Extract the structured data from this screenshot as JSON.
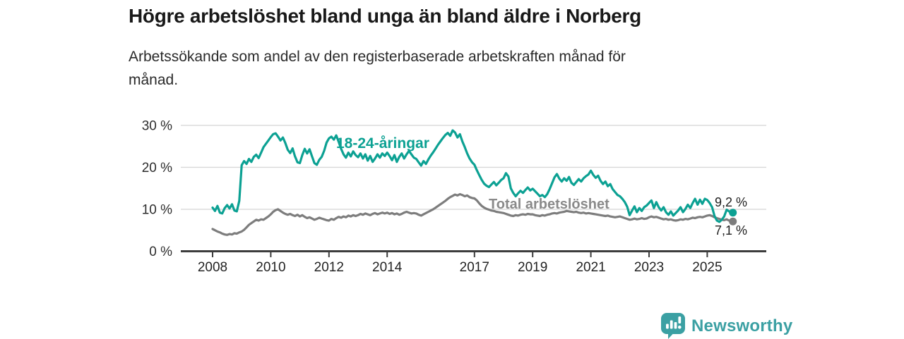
{
  "header": {
    "title": "Högre arbetslöshet bland unga än bland äldre i Norberg",
    "subtitle_line1": "Arbetssökande som andel av den registerbaserade arbetskraften månad för",
    "subtitle_line2": "månad."
  },
  "chart_data": {
    "type": "line",
    "x_start": "2008-01",
    "x_end": "2025-11",
    "frequency": "monthly",
    "unit": "%",
    "ylim": [
      0,
      32
    ],
    "grid": "horizontal",
    "y_ticks": [
      "0 %",
      "10 %",
      "20 %",
      "30 %"
    ],
    "y_tick_values": [
      0,
      10,
      20,
      30
    ],
    "x_ticks": [
      "2008",
      "2010",
      "2012",
      "2014",
      "2017",
      "2019",
      "2021",
      "2023",
      "2025"
    ],
    "series": [
      {
        "name": "18-24-åringar",
        "color": "#0ca193",
        "end_label": "9,2 %",
        "end_value": 9.2,
        "values": [
          10.4,
          9.6,
          10.8,
          9.2,
          9.0,
          10.3,
          11.0,
          10.2,
          11.2,
          9.7,
          9.5,
          12.0,
          20.5,
          21.5,
          20.8,
          22.0,
          21.3,
          22.5,
          23.0,
          22.2,
          23.5,
          24.8,
          25.6,
          26.4,
          27.2,
          27.9,
          28.1,
          27.3,
          26.4,
          27.1,
          25.8,
          24.2,
          23.4,
          24.5,
          22.6,
          21.2,
          21.0,
          22.9,
          24.4,
          23.3,
          24.3,
          22.6,
          21.0,
          20.6,
          21.8,
          22.5,
          23.9,
          25.9,
          26.9,
          27.3,
          26.6,
          27.6,
          26.1,
          24.4,
          23.1,
          22.3,
          23.5,
          22.6,
          23.8,
          22.9,
          22.4,
          23.3,
          22.1,
          23.1,
          21.6,
          22.7,
          21.3,
          22.1,
          23.1,
          22.3,
          23.3,
          22.7,
          23.5,
          22.7,
          21.7,
          22.9,
          21.3,
          22.5,
          23.3,
          22.1,
          23.1,
          23.9,
          23.1,
          22.3,
          22.0,
          21.2,
          20.4,
          21.5,
          20.8,
          21.9,
          22.8,
          23.6,
          24.5,
          25.4,
          26.2,
          27.0,
          27.7,
          28.2,
          27.5,
          28.8,
          28.3,
          27.1,
          27.9,
          26.2,
          24.8,
          23.3,
          22.1,
          21.2,
          20.6,
          19.3,
          18.1,
          17.0,
          16.1,
          15.6,
          15.3,
          15.9,
          16.5,
          15.7,
          16.3,
          17.0,
          17.4,
          18.6,
          17.8,
          15.0,
          13.9,
          13.1,
          13.8,
          14.4,
          13.9,
          14.6,
          15.2,
          14.5,
          14.9,
          14.3,
          13.7,
          13.1,
          13.4,
          12.9,
          13.6,
          14.8,
          16.2,
          17.6,
          18.4,
          17.3,
          16.6,
          17.4,
          16.8,
          17.7,
          16.3,
          15.8,
          16.5,
          17.2,
          16.6,
          17.4,
          17.9,
          18.3,
          19.2,
          18.2,
          17.5,
          18.0,
          16.8,
          16.0,
          16.6,
          15.5,
          16.0,
          14.8,
          14.1,
          13.4,
          13.1,
          12.5,
          11.7,
          10.6,
          8.6,
          9.7,
          10.7,
          9.3,
          10.3,
          9.6,
          10.5,
          10.9,
          11.5,
          12.1,
          10.3,
          11.7,
          10.5,
          9.7,
          10.5,
          9.3,
          8.7,
          9.5,
          8.5,
          9.1,
          9.7,
          10.5,
          9.3,
          10.1,
          11.1,
          10.3,
          11.5,
          12.5,
          11.1,
          12.3,
          11.3,
          12.5,
          12.2,
          11.5,
          10.5,
          8.4,
          7.3,
          7.0,
          7.5,
          8.3,
          9.9,
          9.5,
          9.2
        ]
      },
      {
        "name": "Total arbetslöshet",
        "color": "#7d7d7d",
        "end_label": "7,1 %",
        "end_value": 7.1,
        "values": [
          5.3,
          5.0,
          4.7,
          4.5,
          4.2,
          4.0,
          3.9,
          4.1,
          4.0,
          4.3,
          4.2,
          4.5,
          4.7,
          5.1,
          5.7,
          6.3,
          6.7,
          7.1,
          7.5,
          7.3,
          7.6,
          7.5,
          7.9,
          8.3,
          8.8,
          9.4,
          9.8,
          10.0,
          9.6,
          9.2,
          8.9,
          8.7,
          8.9,
          8.6,
          8.4,
          8.7,
          8.3,
          8.6,
          8.2,
          7.9,
          8.1,
          7.8,
          7.5,
          7.7,
          8.0,
          7.8,
          7.6,
          7.4,
          7.3,
          7.7,
          7.5,
          7.9,
          8.2,
          8.0,
          8.3,
          8.1,
          8.5,
          8.3,
          8.6,
          8.4,
          8.6,
          8.9,
          8.7,
          9.0,
          8.8,
          8.6,
          8.9,
          9.1,
          8.8,
          9.0,
          9.2,
          9.0,
          9.2,
          8.9,
          9.1,
          8.8,
          9.0,
          8.7,
          8.9,
          9.2,
          9.4,
          9.2,
          9.0,
          9.1,
          9.0,
          8.7,
          8.5,
          8.8,
          9.1,
          9.4,
          9.7,
          10.0,
          10.4,
          10.8,
          11.2,
          11.6,
          12.0,
          12.5,
          12.9,
          13.2,
          13.5,
          13.3,
          13.6,
          13.4,
          13.1,
          13.3,
          12.9,
          12.7,
          12.6,
          12.1,
          11.4,
          10.8,
          10.4,
          10.1,
          9.9,
          9.7,
          9.6,
          9.4,
          9.3,
          9.2,
          9.1,
          8.9,
          8.7,
          8.5,
          8.4,
          8.6,
          8.5,
          8.7,
          8.8,
          8.7,
          8.9,
          8.8,
          8.8,
          8.6,
          8.5,
          8.4,
          8.6,
          8.5,
          8.7,
          8.8,
          9.0,
          9.1,
          9.0,
          9.2,
          9.3,
          9.4,
          9.6,
          9.5,
          9.4,
          9.3,
          9.4,
          9.2,
          9.1,
          9.2,
          9.0,
          9.1,
          9.0,
          8.9,
          8.8,
          8.7,
          8.6,
          8.5,
          8.4,
          8.5,
          8.3,
          8.2,
          8.1,
          8.2,
          8.3,
          8.1,
          7.9,
          7.7,
          7.5,
          7.6,
          7.8,
          7.6,
          7.7,
          7.9,
          7.7,
          7.8,
          8.1,
          8.3,
          8.1,
          8.2,
          8.0,
          7.8,
          7.6,
          7.7,
          7.5,
          7.6,
          7.4,
          7.3,
          7.4,
          7.6,
          7.5,
          7.7,
          7.6,
          7.8,
          8.0,
          7.9,
          8.1,
          8.2,
          8.1,
          8.3,
          8.5,
          8.6,
          8.4,
          8.1,
          7.9,
          7.7,
          7.5,
          7.4,
          7.6,
          7.3,
          7.1
        ]
      }
    ]
  },
  "footer": {
    "brand": "Newsworthy",
    "brand_color": "#3ba0a3"
  }
}
